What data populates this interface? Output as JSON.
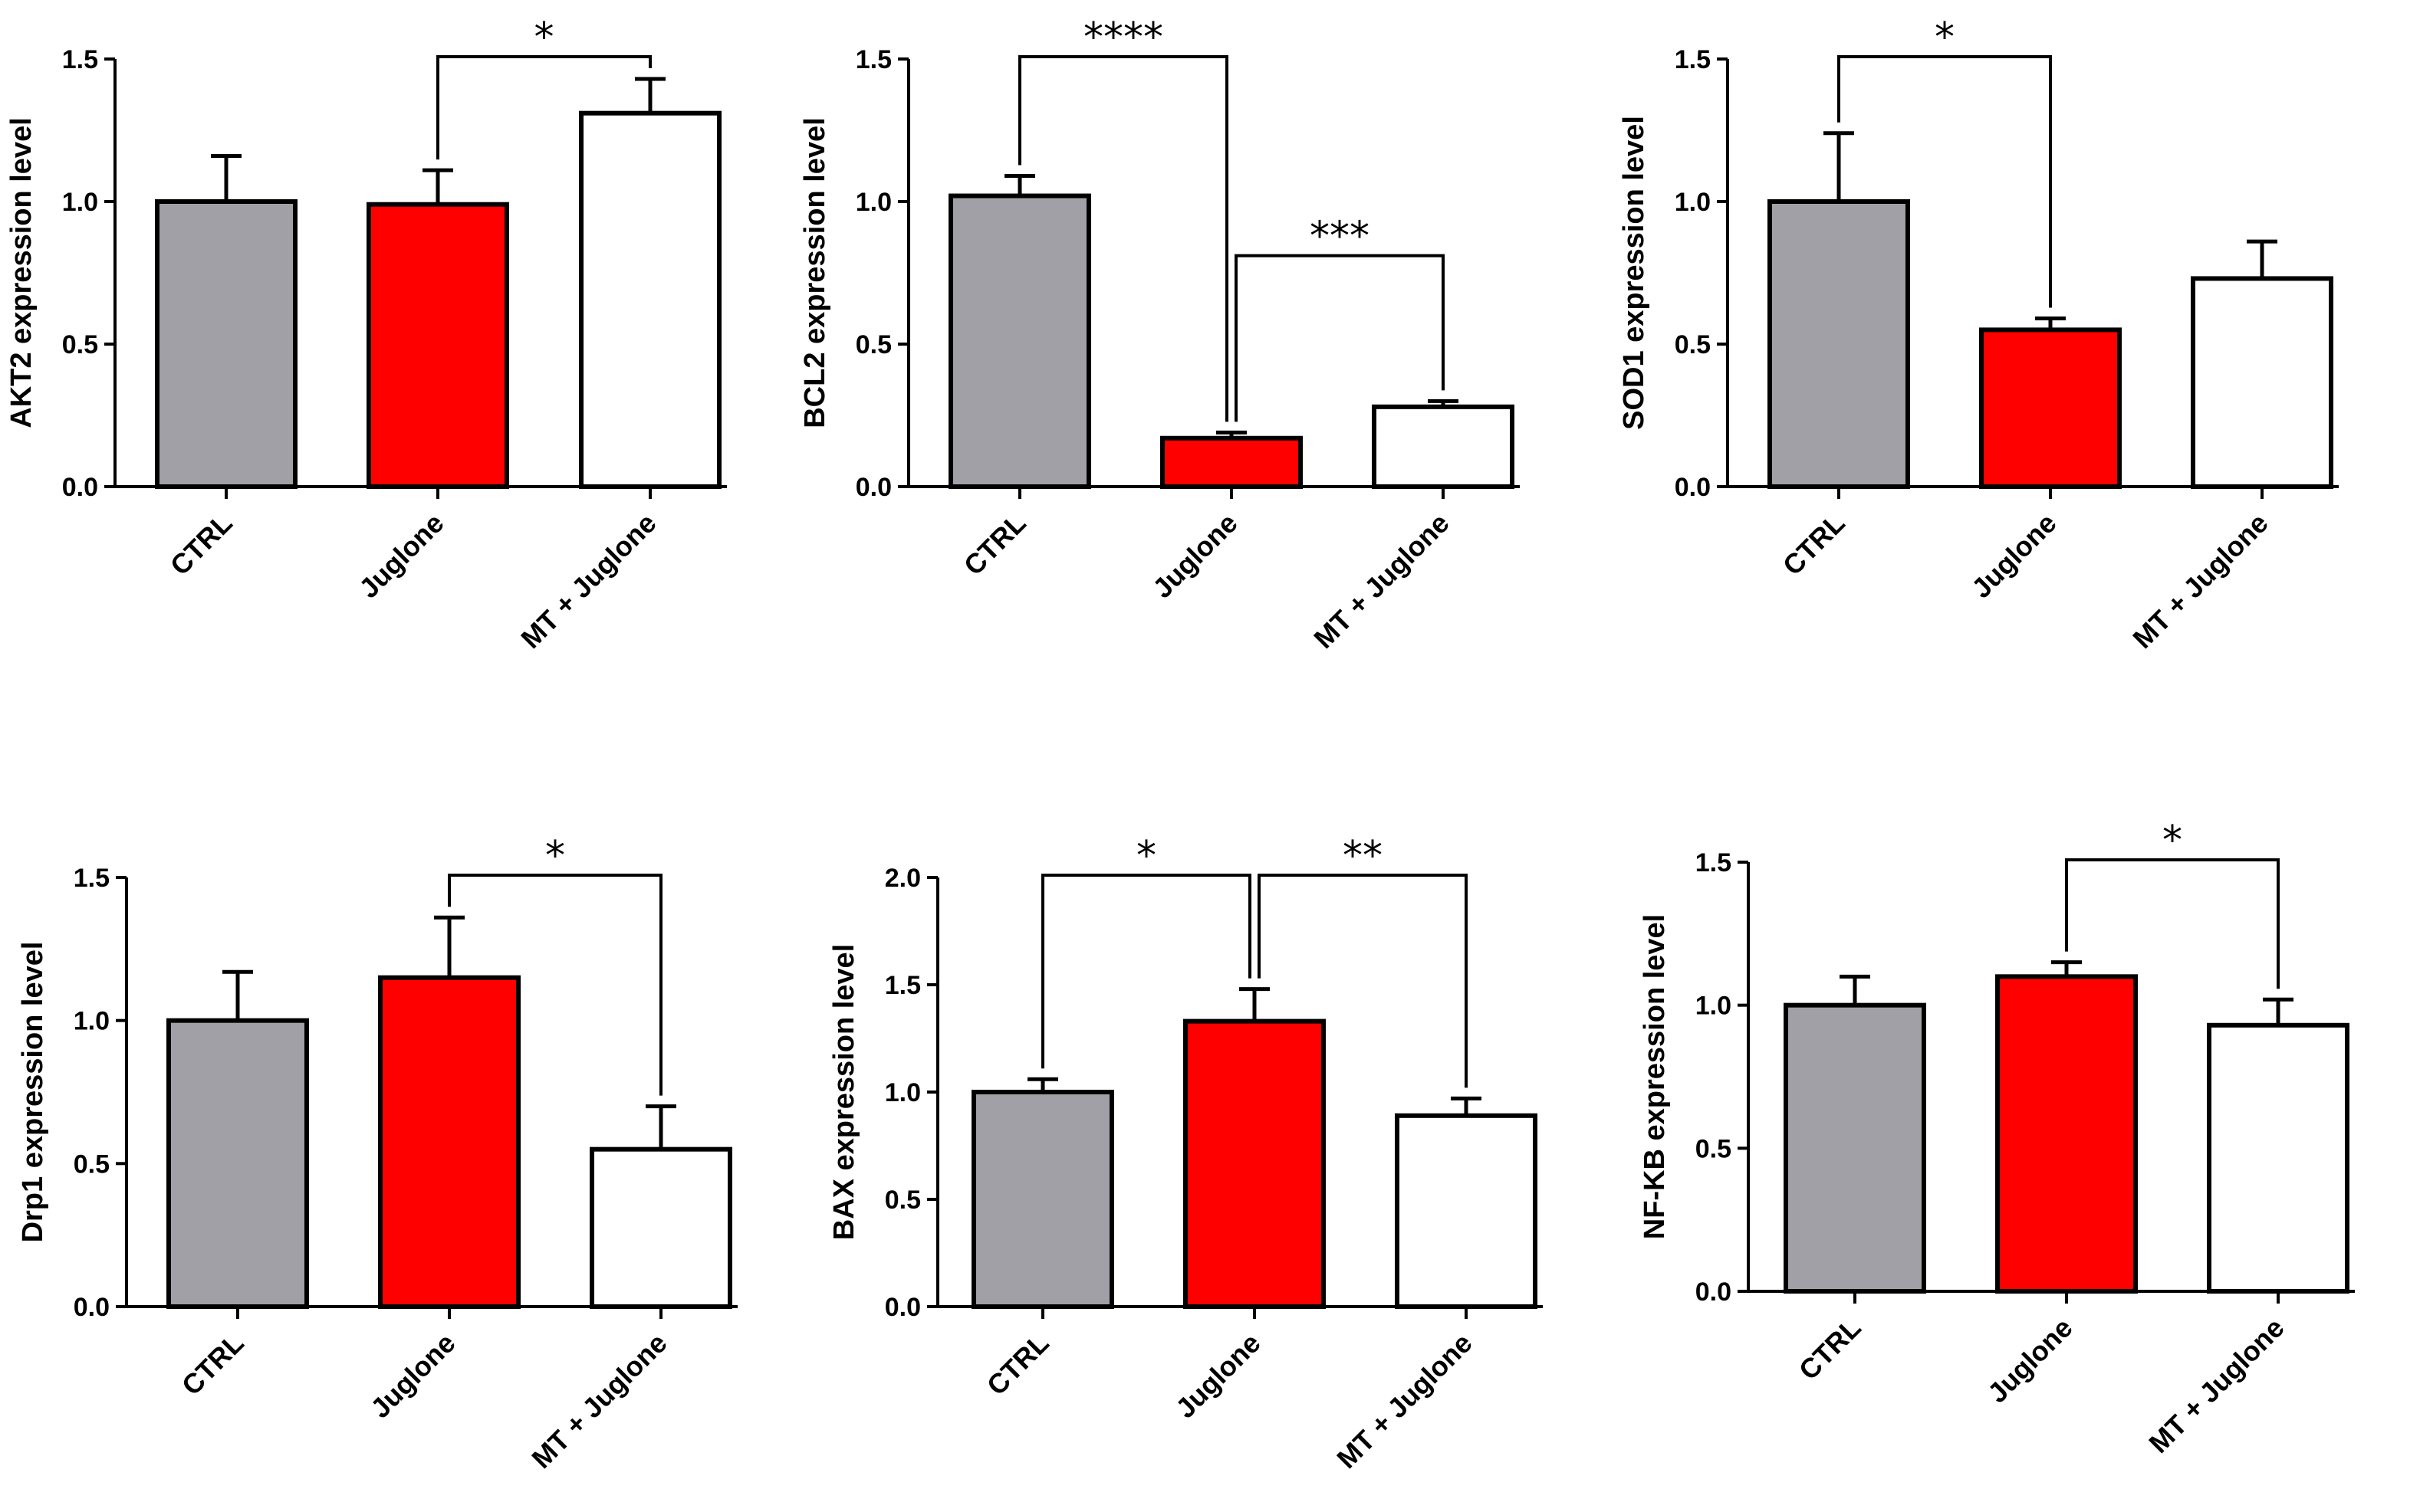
{
  "chart_data": [
    {
      "type": "bar",
      "ylabel": "AKT2 expression level",
      "categories": [
        "CTRL",
        "Juglone",
        "MT + Juglone"
      ],
      "values": [
        1.0,
        0.99,
        1.31
      ],
      "errors": [
        0.16,
        0.12,
        0.12
      ],
      "colors": [
        "#a0a0a6",
        "#ff0000",
        "#ffffff"
      ],
      "ylim": [
        0,
        1.5
      ],
      "yticks": [
        "0.0",
        "0.5",
        "1.0",
        "1.5"
      ],
      "significance": [
        {
          "from": 1,
          "to": 2,
          "label": "*"
        }
      ]
    },
    {
      "type": "bar",
      "ylabel": "BCL2 expression level",
      "categories": [
        "CTRL",
        "Juglone",
        "MT + Juglone"
      ],
      "values": [
        1.02,
        0.17,
        0.28
      ],
      "errors": [
        0.07,
        0.02,
        0.02
      ],
      "colors": [
        "#a0a0a6",
        "#ff0000",
        "#ffffff"
      ],
      "ylim": [
        0,
        1.5
      ],
      "yticks": [
        "0.0",
        "0.5",
        "1.0",
        "1.5"
      ],
      "significance": [
        {
          "from": 0,
          "to": 1,
          "label": "****"
        },
        {
          "from": 1,
          "to": 2,
          "label": "***"
        }
      ]
    },
    {
      "type": "bar",
      "ylabel": "SOD1 expression level",
      "categories": [
        "CTRL",
        "Juglone",
        "MT + Juglone"
      ],
      "values": [
        1.0,
        0.55,
        0.73
      ],
      "errors": [
        0.24,
        0.04,
        0.13
      ],
      "colors": [
        "#a0a0a6",
        "#ff0000",
        "#ffffff"
      ],
      "ylim": [
        0,
        1.5
      ],
      "yticks": [
        "0.0",
        "0.5",
        "1.0",
        "1.5"
      ],
      "significance": [
        {
          "from": 0,
          "to": 1,
          "label": "*"
        }
      ]
    },
    {
      "type": "bar",
      "ylabel": "Drp1 expression level",
      "categories": [
        "CTRL",
        "Juglone",
        "MT + Juglone"
      ],
      "values": [
        1.0,
        1.15,
        0.55
      ],
      "errors": [
        0.17,
        0.21,
        0.15
      ],
      "colors": [
        "#a0a0a6",
        "#ff0000",
        "#ffffff"
      ],
      "ylim": [
        0,
        1.5
      ],
      "yticks": [
        "0.0",
        "0.5",
        "1.0",
        "1.5"
      ],
      "significance": [
        {
          "from": 1,
          "to": 2,
          "label": "*"
        }
      ]
    },
    {
      "type": "bar",
      "ylabel": "BAX expression level",
      "categories": [
        "CTRL",
        "Juglone",
        "MT + Juglone"
      ],
      "values": [
        1.0,
        1.33,
        0.89
      ],
      "errors": [
        0.06,
        0.15,
        0.08
      ],
      "colors": [
        "#a0a0a6",
        "#ff0000",
        "#ffffff"
      ],
      "ylim": [
        0,
        2.0
      ],
      "yticks": [
        "0.0",
        "0.5",
        "1.0",
        "1.5",
        "2.0"
      ],
      "significance": [
        {
          "from": 0,
          "to": 1,
          "label": "*"
        },
        {
          "from": 1,
          "to": 2,
          "label": "**"
        }
      ]
    },
    {
      "type": "bar",
      "ylabel": "NF-KB expression level",
      "categories": [
        "CTRL",
        "Juglone",
        "MT + Juglone"
      ],
      "values": [
        1.0,
        1.1,
        0.93
      ],
      "errors": [
        0.1,
        0.05,
        0.09
      ],
      "colors": [
        "#a0a0a6",
        "#ff0000",
        "#ffffff"
      ],
      "ylim": [
        0,
        1.5
      ],
      "yticks": [
        "0.0",
        "0.5",
        "1.0",
        "1.5"
      ],
      "significance": [
        {
          "from": 1,
          "to": 2,
          "label": "*"
        }
      ]
    }
  ]
}
